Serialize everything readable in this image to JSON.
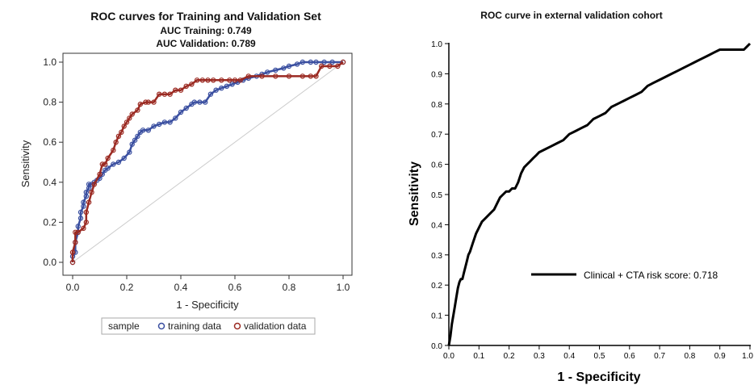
{
  "chart_data": [
    {
      "type": "line",
      "title": "ROC curves for Training and Validation Set",
      "subtitle_lines": [
        "AUC Training: 0.749",
        "AUC Validation: 0.789"
      ],
      "xlabel": "1 - Specificity",
      "ylabel": "Sensitivity",
      "xlim": [
        0,
        1
      ],
      "ylim": [
        0,
        1
      ],
      "xticks": [
        "0.0",
        "0.2",
        "0.4",
        "0.6",
        "0.8",
        "1.0"
      ],
      "yticks": [
        "0.0",
        "0.2",
        "0.4",
        "0.6",
        "0.8",
        "1.0"
      ],
      "grid": false,
      "legend": {
        "placement": "bottom",
        "title": "sample",
        "entries": [
          "training data",
          "validation data"
        ]
      },
      "reference_line": {
        "x": [
          0,
          1
        ],
        "y": [
          0,
          1
        ]
      },
      "colors": {
        "training": "#3a4fa0",
        "validation": "#9b2a22",
        "reference": "#cccccc"
      },
      "series": [
        {
          "name": "training data",
          "x": [
            0,
            0,
            0.01,
            0.01,
            0.02,
            0.02,
            0.03,
            0.03,
            0.04,
            0.04,
            0.05,
            0.05,
            0.06,
            0.06,
            0.07,
            0.08,
            0.09,
            0.1,
            0.11,
            0.12,
            0.13,
            0.15,
            0.17,
            0.19,
            0.21,
            0.22,
            0.23,
            0.24,
            0.25,
            0.26,
            0.28,
            0.3,
            0.32,
            0.34,
            0.36,
            0.38,
            0.4,
            0.42,
            0.44,
            0.45,
            0.47,
            0.49,
            0.51,
            0.53,
            0.55,
            0.57,
            0.59,
            0.61,
            0.63,
            0.65,
            0.68,
            0.7,
            0.72,
            0.75,
            0.78,
            0.8,
            0.83,
            0.85,
            0.88,
            0.9,
            0.93,
            0.96,
            1.0
          ],
          "y": [
            0,
            0.03,
            0.05,
            0.1,
            0.15,
            0.18,
            0.22,
            0.25,
            0.28,
            0.3,
            0.33,
            0.35,
            0.37,
            0.39,
            0.39,
            0.4,
            0.41,
            0.42,
            0.44,
            0.46,
            0.47,
            0.49,
            0.5,
            0.52,
            0.55,
            0.59,
            0.61,
            0.63,
            0.65,
            0.66,
            0.66,
            0.68,
            0.69,
            0.7,
            0.7,
            0.72,
            0.75,
            0.77,
            0.79,
            0.8,
            0.8,
            0.8,
            0.84,
            0.86,
            0.87,
            0.88,
            0.89,
            0.9,
            0.91,
            0.92,
            0.93,
            0.94,
            0.95,
            0.96,
            0.97,
            0.98,
            0.99,
            1.0,
            1.0,
            1.0,
            1.0,
            1.0,
            1.0
          ]
        },
        {
          "name": "validation data",
          "x": [
            0,
            0,
            0.01,
            0.01,
            0.02,
            0.04,
            0.05,
            0.05,
            0.06,
            0.07,
            0.08,
            0.1,
            0.11,
            0.12,
            0.13,
            0.15,
            0.16,
            0.17,
            0.18,
            0.19,
            0.2,
            0.21,
            0.22,
            0.24,
            0.25,
            0.27,
            0.28,
            0.3,
            0.32,
            0.34,
            0.36,
            0.38,
            0.4,
            0.42,
            0.44,
            0.46,
            0.48,
            0.5,
            0.52,
            0.55,
            0.58,
            0.6,
            0.62,
            0.65,
            0.7,
            0.75,
            0.8,
            0.85,
            0.88,
            0.9,
            0.92,
            0.95,
            0.98,
            1.0
          ],
          "y": [
            0,
            0.05,
            0.1,
            0.15,
            0.15,
            0.17,
            0.2,
            0.25,
            0.3,
            0.35,
            0.39,
            0.44,
            0.49,
            0.49,
            0.52,
            0.56,
            0.6,
            0.63,
            0.65,
            0.68,
            0.7,
            0.72,
            0.74,
            0.76,
            0.79,
            0.8,
            0.8,
            0.8,
            0.84,
            0.84,
            0.84,
            0.86,
            0.86,
            0.88,
            0.89,
            0.91,
            0.91,
            0.91,
            0.91,
            0.91,
            0.91,
            0.91,
            0.91,
            0.93,
            0.93,
            0.93,
            0.93,
            0.93,
            0.93,
            0.93,
            0.98,
            0.98,
            0.98,
            1.0
          ]
        }
      ]
    },
    {
      "type": "line",
      "title": "ROC curve in external validation cohort",
      "xlabel": "1 - Specificity",
      "ylabel": "Sensitivity",
      "xlim": [
        0,
        1
      ],
      "ylim": [
        0,
        1
      ],
      "xticks": [
        "0.0",
        "0.1",
        "0.2",
        "0.3",
        "0.4",
        "0.5",
        "0.6",
        "0.7",
        "0.8",
        "0.9",
        "1.0"
      ],
      "yticks": [
        "0.0",
        "0.1",
        "0.2",
        "0.3",
        "0.4",
        "0.5",
        "0.6",
        "0.7",
        "0.8",
        "0.9",
        "1.0"
      ],
      "grid": false,
      "legend": {
        "placement": "right",
        "entries": [
          "Clinical + CTA risk score: 0.718"
        ]
      },
      "colors": {
        "line": "#000000"
      },
      "series": [
        {
          "name": "Clinical + CTA risk score: 0.718",
          "x": [
            0,
            0.005,
            0.01,
            0.015,
            0.02,
            0.025,
            0.03,
            0.035,
            0.04,
            0.045,
            0.05,
            0.055,
            0.06,
            0.065,
            0.07,
            0.08,
            0.09,
            0.1,
            0.11,
            0.12,
            0.13,
            0.14,
            0.15,
            0.16,
            0.17,
            0.18,
            0.19,
            0.2,
            0.21,
            0.22,
            0.23,
            0.24,
            0.25,
            0.26,
            0.27,
            0.28,
            0.29,
            0.3,
            0.32,
            0.34,
            0.36,
            0.38,
            0.4,
            0.42,
            0.44,
            0.46,
            0.48,
            0.5,
            0.52,
            0.54,
            0.56,
            0.58,
            0.6,
            0.62,
            0.64,
            0.66,
            0.68,
            0.7,
            0.72,
            0.74,
            0.76,
            0.78,
            0.8,
            0.82,
            0.84,
            0.86,
            0.88,
            0.9,
            0.92,
            0.94,
            0.96,
            0.98,
            0.99,
            1.0
          ],
          "y": [
            0,
            0.03,
            0.07,
            0.1,
            0.13,
            0.16,
            0.19,
            0.21,
            0.22,
            0.22,
            0.24,
            0.26,
            0.28,
            0.3,
            0.31,
            0.34,
            0.37,
            0.39,
            0.41,
            0.42,
            0.43,
            0.44,
            0.45,
            0.47,
            0.49,
            0.5,
            0.51,
            0.51,
            0.52,
            0.52,
            0.54,
            0.57,
            0.59,
            0.6,
            0.61,
            0.62,
            0.63,
            0.64,
            0.65,
            0.66,
            0.67,
            0.68,
            0.7,
            0.71,
            0.72,
            0.73,
            0.75,
            0.76,
            0.77,
            0.79,
            0.8,
            0.81,
            0.82,
            0.83,
            0.84,
            0.86,
            0.87,
            0.88,
            0.89,
            0.9,
            0.91,
            0.92,
            0.93,
            0.94,
            0.95,
            0.96,
            0.97,
            0.98,
            0.98,
            0.98,
            0.98,
            0.98,
            0.99,
            1.0
          ]
        }
      ]
    }
  ]
}
